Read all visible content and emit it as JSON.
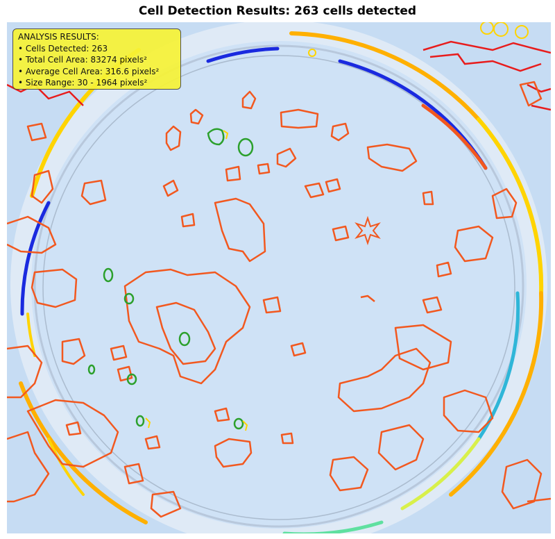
{
  "title": "Cell Detection Results: 263 cells detected",
  "results": {
    "heading": "ANALYSIS RESULTS:",
    "lines": [
      "• Cells Detected: 263",
      "• Total Cell Area: 83274 pixels²",
      "• Average Cell Area: 316.6 pixels²",
      "• Size Range: 30 - 1964 pixels²"
    ]
  },
  "colors": {
    "background": "#c6dcf3",
    "contour_orange": "#f2581f",
    "contour_red": "#e81c1c",
    "contour_green": "#2ca02c",
    "rim_yellow": "#ffd400",
    "rim_blue": "#1a2adf",
    "rim_cyan": "#2fb6d8",
    "legend_bg": "#f7f336"
  }
}
